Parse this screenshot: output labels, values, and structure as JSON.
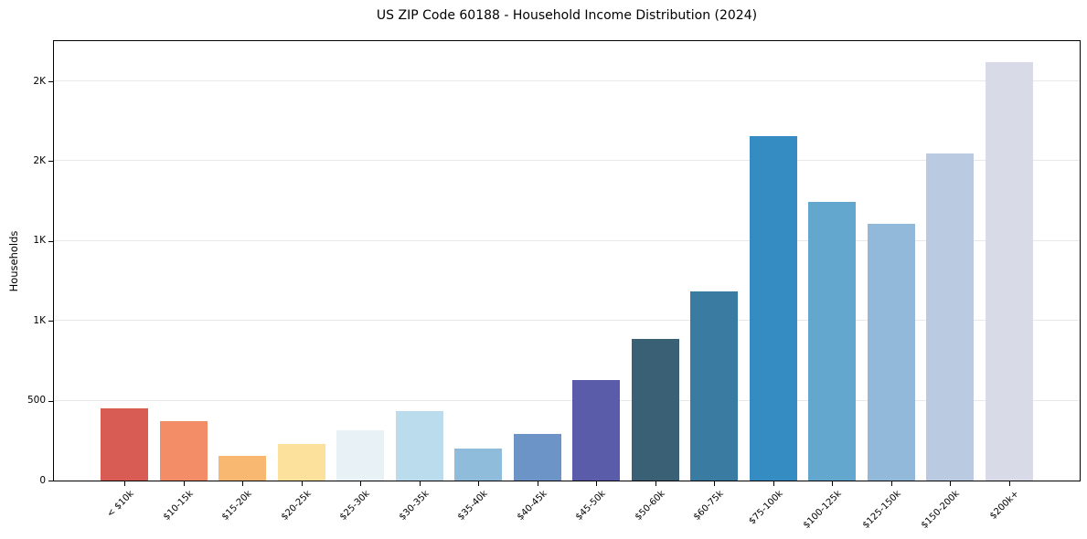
{
  "title": "US ZIP Code 60188 - Household Income Distribution (2024)",
  "chart_data": {
    "type": "bar",
    "title": "US ZIP Code 60188 - Household Income Distribution (2024)",
    "xlabel": "",
    "ylabel": "Households",
    "ylim": [
      0,
      2752
    ],
    "grid": "horizontal",
    "legend": "none",
    "categories": [
      "< $10k",
      "$10-15k",
      "$15-20k",
      "$20-25k",
      "$25-30k",
      "$30-35k",
      "$35-40k",
      "$40-45k",
      "$45-50k",
      "$50-60k",
      "$60-75k",
      "$75-100k",
      "$100-125k",
      "$125-150k",
      "$150-200k",
      "$200k+"
    ],
    "values": [
      450,
      370,
      155,
      230,
      315,
      435,
      200,
      290,
      630,
      885,
      1185,
      2155,
      1745,
      1610,
      2050,
      2620
    ],
    "bar_colors": [
      "#d85c54",
      "#f28d68",
      "#f9b871",
      "#fce19c",
      "#e8f2f6",
      "#badcec",
      "#90bcdc",
      "#6c94c6",
      "#5a5caa",
      "#3a6076",
      "#3a7ba1",
      "#348cc2",
      "#63a6ce",
      "#92b9d9",
      "#bacbe1",
      "#d8dae8"
    ],
    "y_ticks": [
      {
        "value": 0,
        "label": "0"
      },
      {
        "value": 500,
        "label": "500"
      },
      {
        "value": 1000,
        "label": "1K"
      },
      {
        "value": 1500,
        "label": "1K"
      },
      {
        "value": 2000,
        "label": "2K"
      },
      {
        "value": 2500,
        "label": "2K"
      }
    ]
  },
  "colors": {
    "background": "#ffffff",
    "spine": "#000000",
    "gridline": "#e8e8e8",
    "text": "#000000"
  }
}
